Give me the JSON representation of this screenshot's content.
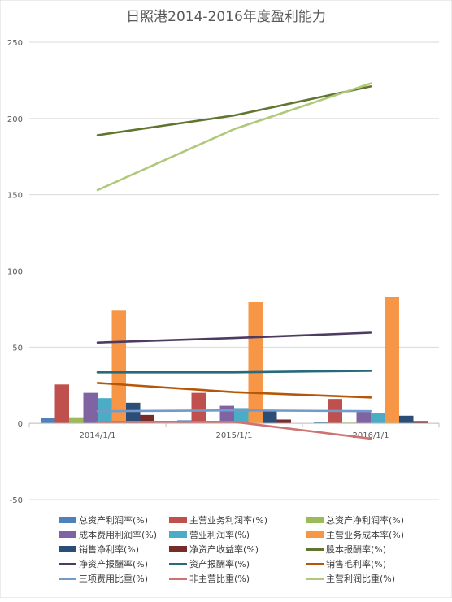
{
  "chart_data": {
    "type": "bar",
    "title": "日照港2014-2016年度盈利能力",
    "categories": [
      "2014/1/1",
      "2015/1/1",
      "2016/1/1"
    ],
    "ylim": [
      -50,
      250
    ],
    "yticks": [
      -50,
      0,
      50,
      100,
      150,
      200,
      250
    ],
    "grid": true,
    "legend_position": "bottom",
    "series": [
      {
        "name": "总资产利润率(%)",
        "kind": "bar",
        "color": "#4f81bd",
        "values": [
          3.5,
          2.0,
          1.0
        ]
      },
      {
        "name": "主营业务利润率(%)",
        "kind": "bar",
        "color": "#c0504d",
        "values": [
          25.5,
          20.0,
          16.0
        ]
      },
      {
        "name": "总资产净利润率(%)",
        "kind": "bar",
        "color": "#9bbb59",
        "values": [
          4.0,
          1.5,
          0.5
        ]
      },
      {
        "name": "成本费用利润率(%)",
        "kind": "bar",
        "color": "#8064a2",
        "values": [
          20.0,
          11.5,
          8.0
        ]
      },
      {
        "name": "营业利润率(%)",
        "kind": "bar",
        "color": "#4bacc6",
        "values": [
          16.5,
          10.0,
          7.0
        ]
      },
      {
        "name": "主营业务成本率(%)",
        "kind": "bar",
        "color": "#f79646",
        "values": [
          74.0,
          79.5,
          83.0
        ]
      },
      {
        "name": "销售净利率(%)",
        "kind": "bar",
        "color": "#2c4d75",
        "values": [
          13.5,
          8.0,
          5.0
        ]
      },
      {
        "name": "净资产收益率(%)",
        "kind": "bar",
        "color": "#772c2a",
        "values": [
          5.5,
          2.5,
          1.5
        ]
      },
      {
        "name": "股本报酬率(%)",
        "kind": "line",
        "color": "#5f7530",
        "values": [
          189.0,
          202.0,
          221.0
        ]
      },
      {
        "name": "净资产报酬率(%)",
        "kind": "line",
        "color": "#4d3b62",
        "values": [
          53.0,
          56.0,
          59.5
        ]
      },
      {
        "name": "资产报酬率(%)",
        "kind": "line",
        "color": "#276a7c",
        "values": [
          33.5,
          33.5,
          34.5
        ]
      },
      {
        "name": "销售毛利率(%)",
        "kind": "line",
        "color": "#b65708",
        "values": [
          26.5,
          20.5,
          17.0
        ]
      },
      {
        "name": "三项费用比重(%)",
        "kind": "line",
        "color": "#729aca",
        "values": [
          8.0,
          8.5,
          8.0
        ]
      },
      {
        "name": "非主营比重(%)",
        "kind": "line",
        "color": "#cd7371",
        "values": [
          1.0,
          1.0,
          -10.0
        ]
      },
      {
        "name": "主营利润比重(%)",
        "kind": "line",
        "color": "#afc97a",
        "values": [
          153.0,
          193.0,
          223.0
        ]
      }
    ]
  },
  "colors": {
    "gridline": "#d9d9d9",
    "axis_text": "#595959",
    "title_text": "#595959"
  }
}
